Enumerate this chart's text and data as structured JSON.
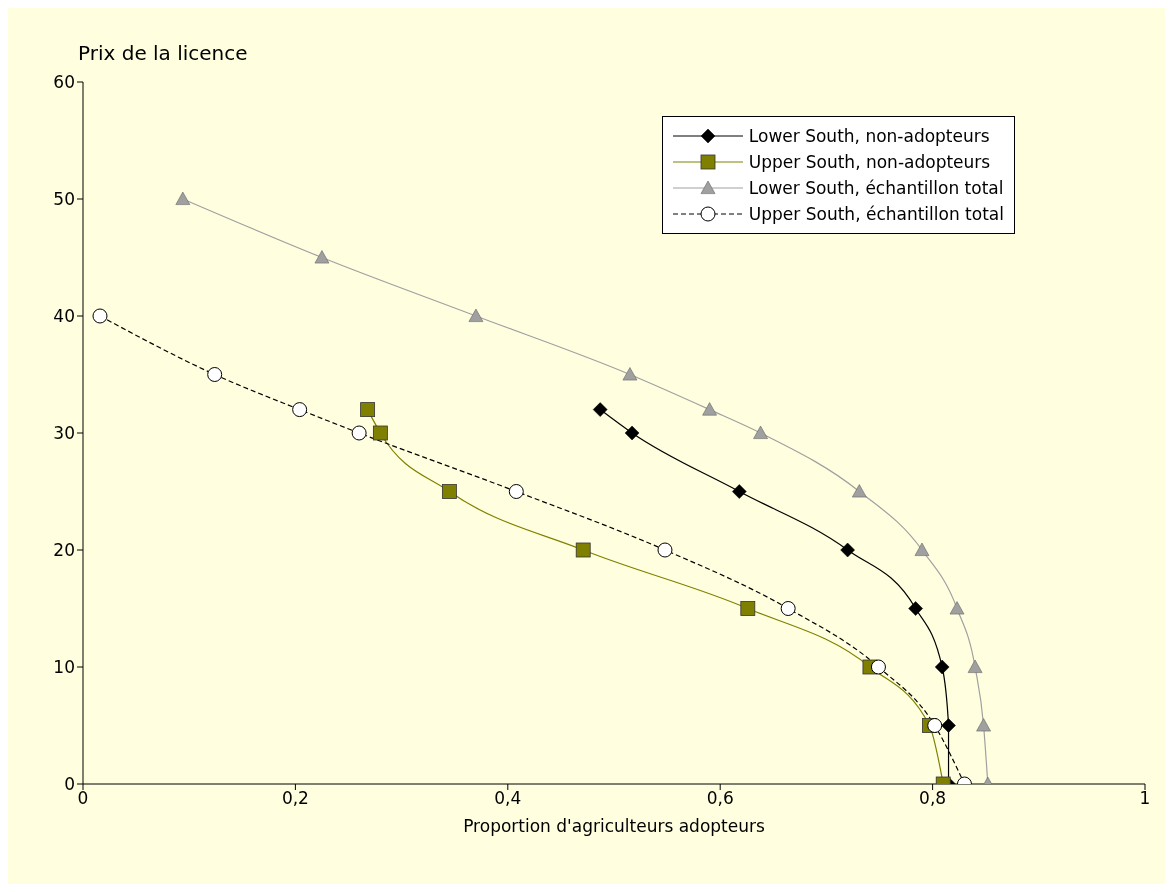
{
  "chart_data": {
    "type": "line",
    "ylabel": "Prix de la licence",
    "xlabel": "Proportion d'agriculteurs adopteurs",
    "xlim": [
      0,
      1
    ],
    "xticks": [
      0,
      {
        "value": 0.2,
        "label": "0,2"
      },
      {
        "value": 0.4,
        "label": "0,4"
      },
      {
        "value": 0.6,
        "label": "0,6"
      },
      {
        "value": 0.8,
        "label": "0,8"
      },
      1
    ],
    "ylim": [
      0,
      60
    ],
    "yticks": [
      0,
      10,
      20,
      30,
      40,
      50,
      60
    ],
    "grid": false,
    "legend": "top right",
    "series": [
      {
        "name": "Lower South, non-adopteurs",
        "color": "#000000",
        "marker": "diamond",
        "line_style": "solid",
        "x": [
          0.487,
          0.517,
          0.618,
          0.72,
          0.784,
          0.809,
          0.815,
          0.815
        ],
        "values": [
          32,
          30,
          25,
          20,
          15,
          10,
          5,
          0
        ]
      },
      {
        "name": "Upper South, non-adopteurs",
        "color": "#808000",
        "marker": "square",
        "line_style": "solid",
        "x": [
          0.268,
          0.28,
          0.345,
          0.471,
          0.626,
          0.741,
          0.797,
          0.81
        ],
        "values": [
          32,
          30,
          25,
          20,
          15,
          10,
          5,
          0
        ]
      },
      {
        "name": "Lower South, échantillon total",
        "color": "#a0a0a0",
        "marker": "triangle",
        "line_style": "solid",
        "x": [
          0.094,
          0.225,
          0.37,
          0.515,
          0.59,
          0.638,
          0.731,
          0.79,
          0.823,
          0.84,
          0.848,
          0.852
        ],
        "values": [
          50,
          45,
          40,
          35,
          32,
          30,
          25,
          20,
          15,
          10,
          5,
          0
        ]
      },
      {
        "name": "Upper South, échantillon total",
        "color": "#000000",
        "marker": "circle",
        "line_style": "dashed",
        "x": [
          0.016,
          0.124,
          0.204,
          0.26,
          0.408,
          0.548,
          0.664,
          0.749,
          0.802,
          0.83
        ],
        "values": [
          40,
          35,
          32,
          30,
          25,
          20,
          15,
          10,
          5,
          0
        ]
      }
    ]
  }
}
